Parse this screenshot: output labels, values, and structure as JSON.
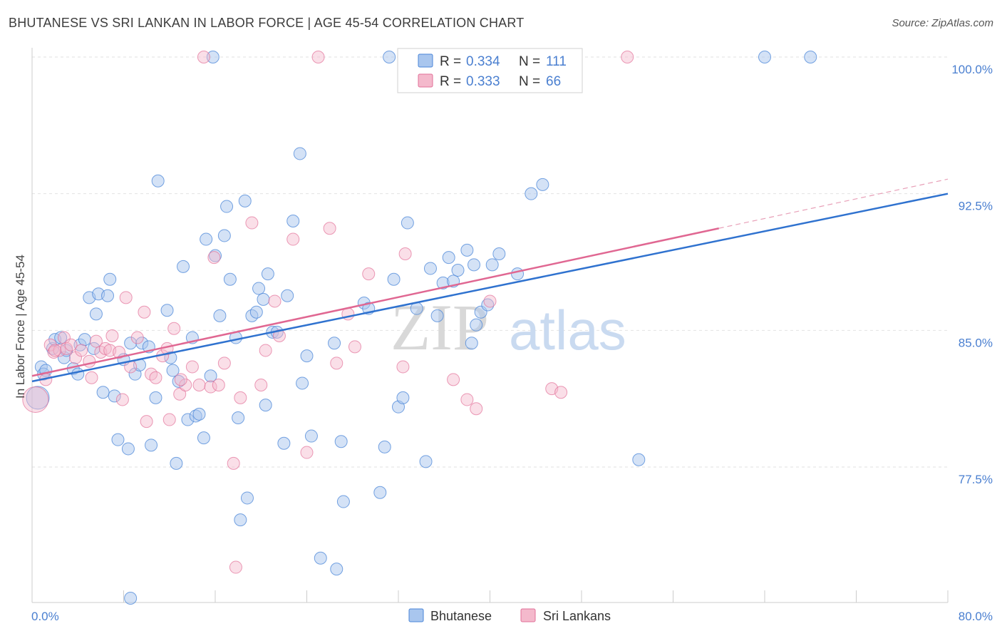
{
  "title": "BHUTANESE VS SRI LANKAN IN LABOR FORCE | AGE 45-54 CORRELATION CHART",
  "source": "Source: ZipAtlas.com",
  "watermark": {
    "zip": "ZIP",
    "atlas": "atlas"
  },
  "colors": {
    "blue": "#4a86d8",
    "blue_fill": "#a9c6ee",
    "pink": "#e27099",
    "pink_fill": "#f4b9cc",
    "tick_text": "#4a7fd0"
  },
  "legend_top": [
    {
      "r_label": "R =",
      "r_value": "0.334",
      "n_label": "N =",
      "n_value": "111"
    },
    {
      "r_label": "R =",
      "r_value": "0.333",
      "n_label": "N =",
      "n_value": "66"
    }
  ],
  "chart_data": {
    "type": "scatter",
    "title": "BHUTANESE VS SRI LANKAN IN LABOR FORCE | AGE 45-54 CORRELATION CHART",
    "xlabel": "",
    "ylabel": "In Labor Force | Age 45-54",
    "xlim": [
      0,
      80
    ],
    "ylim": [
      70.0,
      101.0
    ],
    "x_tick_labels": [
      "0.0%",
      "80.0%"
    ],
    "y_ticks": [
      77.5,
      85.0,
      92.5,
      100.0
    ],
    "y_tick_labels": [
      "77.5%",
      "85.0%",
      "92.5%",
      "100.0%"
    ],
    "grid": true,
    "legend_position": "top-center and bottom",
    "series": [
      {
        "name": "Bhutanese",
        "color": "#4a86d8",
        "r": 0.334,
        "n": 111,
        "trend": {
          "x": [
            0,
            80
          ],
          "y": [
            82.2,
            92.5
          ]
        },
        "points": [
          [
            0.5,
            81.3
          ],
          [
            0.8,
            83.0
          ],
          [
            1.0,
            82.6
          ],
          [
            1.2,
            82.8
          ],
          [
            1.8,
            84.0
          ],
          [
            2.0,
            84.5
          ],
          [
            2.5,
            84.6
          ],
          [
            2.8,
            83.5
          ],
          [
            3.0,
            83.9
          ],
          [
            3.6,
            82.9
          ],
          [
            4.0,
            82.6
          ],
          [
            4.2,
            84.2
          ],
          [
            4.6,
            84.5
          ],
          [
            5.0,
            86.8
          ],
          [
            5.4,
            84.0
          ],
          [
            5.6,
            85.9
          ],
          [
            5.8,
            87.0
          ],
          [
            6.2,
            81.6
          ],
          [
            6.6,
            86.9
          ],
          [
            6.8,
            87.8
          ],
          [
            7.2,
            81.4
          ],
          [
            7.5,
            79.0
          ],
          [
            8.0,
            83.4
          ],
          [
            8.4,
            78.5
          ],
          [
            8.6,
            84.3
          ],
          [
            9.0,
            82.6
          ],
          [
            9.4,
            83.1
          ],
          [
            9.6,
            84.3
          ],
          [
            10.2,
            84.1
          ],
          [
            10.4,
            78.7
          ],
          [
            10.8,
            81.3
          ],
          [
            11.0,
            93.2
          ],
          [
            11.8,
            86.1
          ],
          [
            12.1,
            83.5
          ],
          [
            12.3,
            82.8
          ],
          [
            12.6,
            77.7
          ],
          [
            12.8,
            82.2
          ],
          [
            13.2,
            88.5
          ],
          [
            13.6,
            80.1
          ],
          [
            14.0,
            84.6
          ],
          [
            14.3,
            80.3
          ],
          [
            14.6,
            80.4
          ],
          [
            15.0,
            79.1
          ],
          [
            15.2,
            90.0
          ],
          [
            15.6,
            82.5
          ],
          [
            15.8,
            100.0
          ],
          [
            16.0,
            89.1
          ],
          [
            16.4,
            85.8
          ],
          [
            16.8,
            90.2
          ],
          [
            17.0,
            91.8
          ],
          [
            17.3,
            87.8
          ],
          [
            17.8,
            84.6
          ],
          [
            18.0,
            80.2
          ],
          [
            18.2,
            74.6
          ],
          [
            18.6,
            92.1
          ],
          [
            18.8,
            75.8
          ],
          [
            19.2,
            85.8
          ],
          [
            19.6,
            86.0
          ],
          [
            19.8,
            87.3
          ],
          [
            20.2,
            86.7
          ],
          [
            20.4,
            80.9
          ],
          [
            20.6,
            88.1
          ],
          [
            21.0,
            84.9
          ],
          [
            21.4,
            84.9
          ],
          [
            22.0,
            78.8
          ],
          [
            22.3,
            86.9
          ],
          [
            22.8,
            91.0
          ],
          [
            23.4,
            94.7
          ],
          [
            23.6,
            82.1
          ],
          [
            24.0,
            83.6
          ],
          [
            24.4,
            79.2
          ],
          [
            25.2,
            72.5
          ],
          [
            26.4,
            84.3
          ],
          [
            26.6,
            71.9
          ],
          [
            27.0,
            78.9
          ],
          [
            27.2,
            75.6
          ],
          [
            29.0,
            86.5
          ],
          [
            29.4,
            86.2
          ],
          [
            30.4,
            76.1
          ],
          [
            30.8,
            78.6
          ],
          [
            31.2,
            100.0
          ],
          [
            31.6,
            87.8
          ],
          [
            32.0,
            80.8
          ],
          [
            32.4,
            81.3
          ],
          [
            32.8,
            90.9
          ],
          [
            33.6,
            86.2
          ],
          [
            34.4,
            77.8
          ],
          [
            34.8,
            88.4
          ],
          [
            35.4,
            85.8
          ],
          [
            35.9,
            87.6
          ],
          [
            36.4,
            89.0
          ],
          [
            36.8,
            87.7
          ],
          [
            37.2,
            88.3
          ],
          [
            38.0,
            89.4
          ],
          [
            38.4,
            84.3
          ],
          [
            38.6,
            88.6
          ],
          [
            38.8,
            85.3
          ],
          [
            39.2,
            86.0
          ],
          [
            39.8,
            86.4
          ],
          [
            40.2,
            88.6
          ],
          [
            40.8,
            89.2
          ],
          [
            42.4,
            88.1
          ],
          [
            43.6,
            92.5
          ],
          [
            44.6,
            93.0
          ],
          [
            53.0,
            77.9
          ],
          [
            64.0,
            100.0
          ],
          [
            68.0,
            100.0
          ],
          [
            8.6,
            70.3
          ]
        ]
      },
      {
        "name": "Sri Lankans",
        "color": "#e27099",
        "r": 0.333,
        "n": 66,
        "trend": {
          "x": [
            0,
            60
          ],
          "y": [
            82.5,
            90.6
          ]
        },
        "trend_dashed": {
          "x": [
            60,
            80
          ],
          "y": [
            90.6,
            93.3
          ]
        },
        "points": [
          [
            0.3,
            81.2
          ],
          [
            1.2,
            82.3
          ],
          [
            1.6,
            84.2
          ],
          [
            1.9,
            83.8
          ],
          [
            2.4,
            83.9
          ],
          [
            2.8,
            84.6
          ],
          [
            3.0,
            84.0
          ],
          [
            3.4,
            84.2
          ],
          [
            3.8,
            83.5
          ],
          [
            4.3,
            83.9
          ],
          [
            5.0,
            83.3
          ],
          [
            5.2,
            82.4
          ],
          [
            5.6,
            84.4
          ],
          [
            6.0,
            83.8
          ],
          [
            6.4,
            84.0
          ],
          [
            6.8,
            83.9
          ],
          [
            7.0,
            84.7
          ],
          [
            7.6,
            83.8
          ],
          [
            7.9,
            81.2
          ],
          [
            8.2,
            86.8
          ],
          [
            8.6,
            83.0
          ],
          [
            9.2,
            84.6
          ],
          [
            9.8,
            86.0
          ],
          [
            10.0,
            80.0
          ],
          [
            10.4,
            82.6
          ],
          [
            10.8,
            82.4
          ],
          [
            11.4,
            83.6
          ],
          [
            11.8,
            84.0
          ],
          [
            12.0,
            80.1
          ],
          [
            12.4,
            85.1
          ],
          [
            12.9,
            81.5
          ],
          [
            13.4,
            82.0
          ],
          [
            14.0,
            83.0
          ],
          [
            14.6,
            82.0
          ],
          [
            15.0,
            100.0
          ],
          [
            15.6,
            81.9
          ],
          [
            15.9,
            89.0
          ],
          [
            16.3,
            82.0
          ],
          [
            16.8,
            83.2
          ],
          [
            17.6,
            77.7
          ],
          [
            17.8,
            72.0
          ],
          [
            18.2,
            81.3
          ],
          [
            19.2,
            90.9
          ],
          [
            20.0,
            82.0
          ],
          [
            20.4,
            83.9
          ],
          [
            21.2,
            86.6
          ],
          [
            21.6,
            84.7
          ],
          [
            22.8,
            90.0
          ],
          [
            24.0,
            78.3
          ],
          [
            25.0,
            100.0
          ],
          [
            26.0,
            90.6
          ],
          [
            26.6,
            83.2
          ],
          [
            27.6,
            85.9
          ],
          [
            28.2,
            84.1
          ],
          [
            29.4,
            88.1
          ],
          [
            32.4,
            83.0
          ],
          [
            32.6,
            89.2
          ],
          [
            36.8,
            82.3
          ],
          [
            38.0,
            81.2
          ],
          [
            38.8,
            80.7
          ],
          [
            40.0,
            86.6
          ],
          [
            45.4,
            81.8
          ],
          [
            46.2,
            81.6
          ],
          [
            52.0,
            100.0
          ],
          [
            2.0,
            83.9
          ],
          [
            13.0,
            82.3
          ]
        ]
      }
    ]
  },
  "legend_bottom": [
    {
      "label": "Bhutanese"
    },
    {
      "label": "Sri Lankans"
    }
  ]
}
